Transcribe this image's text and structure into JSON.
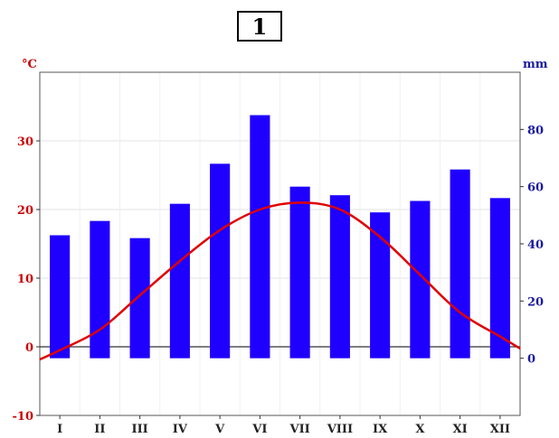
{
  "chart_number": "1",
  "chart_data": {
    "type": "bar+line",
    "title": "",
    "categories": [
      "I",
      "II",
      "III",
      "IV",
      "V",
      "VI",
      "VII",
      "VIII",
      "IX",
      "X",
      "XI",
      "XII"
    ],
    "series": [
      {
        "type": "bar",
        "axis": "right",
        "values": [
          43,
          48,
          42,
          54,
          68,
          85,
          60,
          57,
          51,
          55,
          66,
          56
        ],
        "color": "#1f00ff"
      },
      {
        "type": "line",
        "axis": "left",
        "values": [
          -0.5,
          2.5,
          7.5,
          12.5,
          17,
          20,
          21,
          20,
          16,
          10.5,
          5,
          1.5
        ],
        "color": "#e00000"
      }
    ],
    "y_left": {
      "label": "°C",
      "range": [
        -10,
        40
      ],
      "ticks": [
        "-10",
        "0",
        "10",
        "20",
        "30"
      ],
      "color": "#cc0000"
    },
    "y_right": {
      "label": "mm",
      "range": [
        -20,
        100
      ],
      "ticks": [
        "0",
        "20",
        "40",
        "60",
        "80"
      ],
      "color": "#1a1aa0"
    },
    "grid": true
  }
}
